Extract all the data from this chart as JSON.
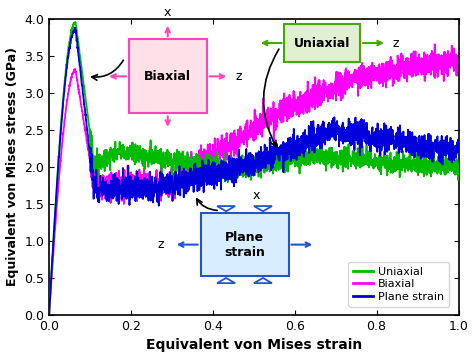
{
  "xlabel": "Equivalent von Mises strain",
  "ylabel": "Equivalent von Mises stress (GPa)",
  "xlim": [
    0.0,
    1.0
  ],
  "ylim": [
    0.0,
    4.0
  ],
  "xticks": [
    0.0,
    0.2,
    0.4,
    0.6,
    0.8,
    1.0
  ],
  "yticks": [
    0.0,
    0.5,
    1.0,
    1.5,
    2.0,
    2.5,
    3.0,
    3.5,
    4.0
  ],
  "line_green": "#00bb00",
  "line_magenta": "#ff00ff",
  "line_blue": "#0000dd",
  "legend_labels": [
    "Uniaxial",
    "Biaxial",
    "Plane strain"
  ],
  "legend_colors": [
    "#00bb00",
    "#ff00ff",
    "#0000dd"
  ],
  "bg_color": "#ffffff",
  "box_biaxial_facecolor": "#ffe0e8",
  "box_biaxial_edgecolor": "#ff44bb",
  "box_uniaxial_facecolor": "#e0f0d0",
  "box_uniaxial_edgecolor": "#44aa00",
  "box_planestrain_facecolor": "#d8eeff",
  "box_planestrain_edgecolor": "#2255cc"
}
